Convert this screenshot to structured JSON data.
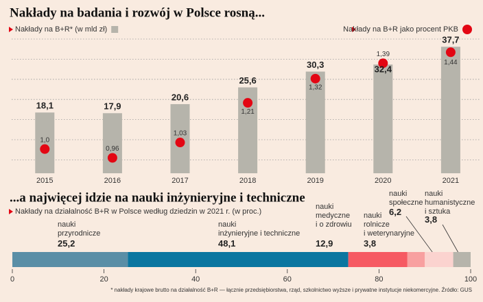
{
  "chart_data": [
    {
      "type": "bar",
      "title": "Nakłady na badania i rozwój w Polsce rosną...",
      "categories": [
        "2015",
        "2016",
        "2017",
        "2018",
        "2019",
        "2020",
        "2021"
      ],
      "series": [
        {
          "name": "Nakłady na B+R* (w mld zł)",
          "color": "#b6b4ab",
          "values": [
            18.1,
            17.9,
            20.6,
            25.6,
            30.3,
            32.4,
            37.7
          ],
          "value_labels": [
            "18,1",
            "17,9",
            "20,6",
            "25,6",
            "30,3",
            "32,4",
            "37,7"
          ]
        },
        {
          "name": "Nakłady na B+R jako procent PKB",
          "color": "#e30613",
          "axis": "y2",
          "values": [
            1.0,
            0.96,
            1.03,
            1.21,
            1.32,
            1.39,
            1.44
          ],
          "value_labels": [
            "1,0",
            "0,96",
            "1,03",
            "1,21",
            "1,32",
            "1,39",
            "1,44"
          ]
        }
      ],
      "ylim": [
        0,
        40
      ],
      "yticks": [
        4,
        10,
        16,
        22,
        28,
        34,
        40
      ],
      "y2lim": [
        0.89,
        1.5
      ],
      "grid": true
    },
    {
      "type": "stacked-bar",
      "title": "...a najwięcej idzie na nauki inżynieryjne i techniczne",
      "subtitle": "Nakłady na działalność B+R w Polsce według dziedzin w 2021 r. (w proc.)",
      "series": [
        {
          "name": "nauki\nprzyrodnicze",
          "color": "#5a8ea6",
          "values": [
            25.2
          ],
          "value_labels": [
            "25,2"
          ]
        },
        {
          "name": "nauki\ninżynieryjne i techniczne",
          "color": "#0b76a0",
          "values": [
            48.1
          ],
          "value_labels": [
            "48,1"
          ]
        },
        {
          "name": "nauki\nmedyczne\ni o zdrowiu",
          "color": "#f65a63",
          "values": [
            12.9
          ],
          "value_labels": [
            "12,9"
          ]
        },
        {
          "name": "nauki\nrolnicze\ni weterynaryjne",
          "color": "#f8a0a0",
          "values": [
            3.8
          ],
          "value_labels": [
            "3,8"
          ]
        },
        {
          "name": "nauki\nspołeczne",
          "color": "#fbd3cf",
          "values": [
            6.2
          ],
          "value_labels": [
            "6,2"
          ]
        },
        {
          "name": "nauki\nhumanistyczne\ni sztuka",
          "color": "#b6b4ab",
          "values": [
            3.8
          ],
          "value_labels": [
            "3,8"
          ]
        }
      ],
      "xlim": [
        0,
        100
      ],
      "xticks": [
        0,
        20,
        40,
        60,
        80,
        100
      ],
      "note": "* nakłady krajowe brutto na działalność B+R — łącznie przedsiębiorstwa, rząd, szkolnictwo wyższe i prywatne instytucje niekomercyjne. Źródło: GUS"
    }
  ]
}
